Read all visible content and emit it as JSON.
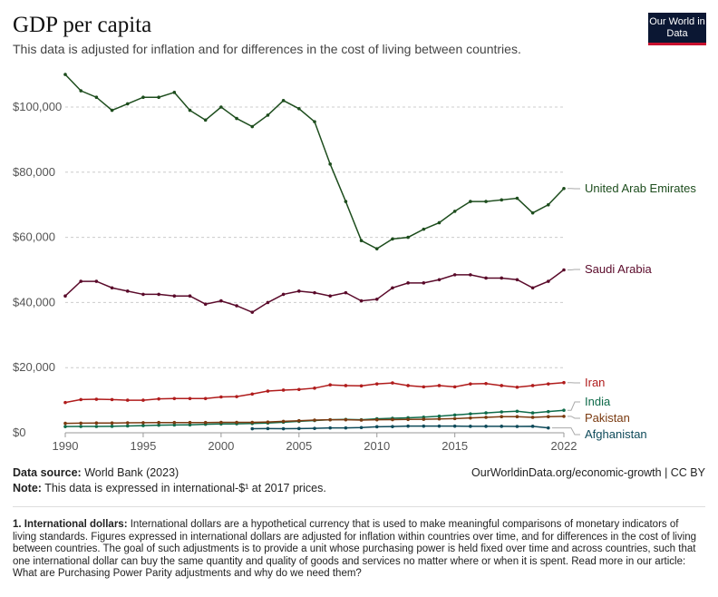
{
  "header": {
    "title": "GDP per capita",
    "subtitle": "This data is adjusted for inflation and for differences in the cost of living between countries.",
    "logo": "Our World in Data"
  },
  "chart_data": {
    "type": "line",
    "title": "GDP per capita",
    "ylim": [
      0,
      110000
    ],
    "xlim": [
      1990,
      2022
    ],
    "yticks": [
      0,
      20000,
      40000,
      60000,
      80000,
      100000
    ],
    "ytick_labels": [
      "$0",
      "$20,000",
      "$40,000",
      "$60,000",
      "$80,000",
      "$100,000"
    ],
    "xticks": [
      1990,
      1995,
      2000,
      2005,
      2010,
      2015,
      2022
    ],
    "grid": "horizontal dashed",
    "legend": "right, labels at line ends",
    "series": [
      {
        "name": "United Arab Emirates",
        "color": "#1d4d1d",
        "start": 1990,
        "values": [
          110000,
          105000,
          103000,
          99000,
          101000,
          103000,
          103000,
          104500,
          99000,
          96000,
          100000,
          96500,
          94000,
          97500,
          102000,
          99500,
          95500,
          82500,
          71000,
          59000,
          56500,
          59500,
          60000,
          62500,
          64500,
          68000,
          71000,
          71000,
          71500,
          72000,
          67500,
          70000,
          75000
        ]
      },
      {
        "name": "Saudi Arabia",
        "color": "#5a0a2a",
        "start": 1990,
        "values": [
          42000,
          46500,
          46500,
          44500,
          43500,
          42500,
          42500,
          42000,
          42000,
          39500,
          40500,
          39000,
          37000,
          40000,
          42500,
          43500,
          43000,
          42000,
          43000,
          40500,
          41000,
          44500,
          46000,
          46000,
          47000,
          48500,
          48500,
          47500,
          47500,
          47000,
          44500,
          46500,
          50000
        ]
      },
      {
        "name": "Iran",
        "color": "#b01c1c",
        "start": 1990,
        "values": [
          9300,
          10200,
          10300,
          10200,
          10000,
          10000,
          10400,
          10500,
          10500,
          10500,
          11000,
          11100,
          11900,
          12800,
          13100,
          13300,
          13700,
          14700,
          14500,
          14400,
          15000,
          15300,
          14500,
          14100,
          14500,
          14100,
          15000,
          15100,
          14500,
          14000,
          14500,
          15000,
          15400
        ]
      },
      {
        "name": "India",
        "color": "#0f6b4a",
        "start": 1990,
        "values": [
          1900,
          1950,
          1950,
          2000,
          2100,
          2200,
          2350,
          2400,
          2450,
          2600,
          2700,
          2750,
          2850,
          3000,
          3250,
          3500,
          3750,
          4000,
          4100,
          4000,
          4300,
          4450,
          4600,
          4800,
          5100,
          5450,
          5800,
          6100,
          6400,
          6600,
          6100,
          6500,
          6900
        ]
      },
      {
        "name": "Pakistan",
        "color": "#7a3a10",
        "start": 1990,
        "values": [
          2900,
          2950,
          3000,
          3000,
          3050,
          3100,
          3150,
          3150,
          3150,
          3150,
          3200,
          3200,
          3200,
          3300,
          3500,
          3700,
          3900,
          4000,
          4000,
          3900,
          4000,
          4050,
          4100,
          4150,
          4250,
          4350,
          4550,
          4750,
          4950,
          4950,
          4750,
          4950,
          5050
        ]
      },
      {
        "name": "Afghanistan",
        "color": "#0e4a5a",
        "start": 2002,
        "values": [
          1250,
          1300,
          1250,
          1300,
          1350,
          1500,
          1500,
          1600,
          1850,
          1900,
          2050,
          2050,
          2050,
          2050,
          2000,
          2000,
          2000,
          1950,
          2000,
          1500
        ]
      }
    ]
  },
  "footer": {
    "source_label": "Data source:",
    "source": "World Bank (2023)",
    "url": "OurWorldinData.org/economic-growth | CC BY",
    "note_label": "Note:",
    "note": "This data is expressed in international-$¹ at 2017 prices."
  },
  "footnote": {
    "label": "1. International dollars:",
    "text": "International dollars are a hypothetical currency that is used to make meaningful comparisons of monetary indicators of living standards. Figures expressed in international dollars are adjusted for inflation within countries over time, and for differences in the cost of living between countries. The goal of such adjustments is to provide a unit whose purchasing power is held fixed over time and across countries, such that one international dollar can buy the same quantity and quality of goods and services no matter where or when it is spent. Read more in our article: What are Purchasing Power Parity adjustments and why do we need them?"
  }
}
